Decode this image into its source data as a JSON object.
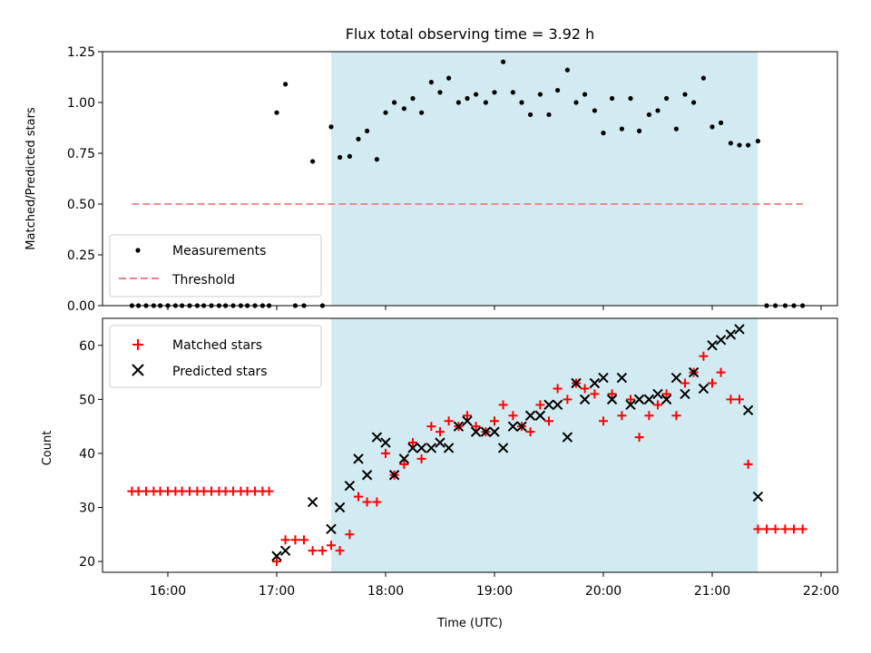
{
  "chart_data": [
    {
      "type": "scatter",
      "title": "Flux total observing time = 3.92 h",
      "xlabel": "",
      "ylabel": "Matched/Predicted stars",
      "ylim": [
        0,
        1.25
      ],
      "yticks": [
        "0.00",
        "0.25",
        "0.50",
        "0.75",
        "1.00",
        "1.25"
      ],
      "xlim_hours": [
        15.4,
        22.15
      ],
      "shaded_span_hours": [
        17.5,
        21.42
      ],
      "shade_color": "#add8e6",
      "legend_position": "lower-left",
      "series": [
        {
          "name": "Measurements",
          "marker": "dot",
          "color": "#000000",
          "points": [
            [
              15.67,
              0
            ],
            [
              15.73,
              0
            ],
            [
              15.8,
              0
            ],
            [
              15.87,
              0
            ],
            [
              15.93,
              0
            ],
            [
              16.0,
              0
            ],
            [
              16.07,
              0
            ],
            [
              16.13,
              0
            ],
            [
              16.2,
              0
            ],
            [
              16.27,
              0
            ],
            [
              16.33,
              0
            ],
            [
              16.4,
              0
            ],
            [
              16.47,
              0
            ],
            [
              16.53,
              0
            ],
            [
              16.6,
              0
            ],
            [
              16.67,
              0
            ],
            [
              16.73,
              0
            ],
            [
              16.8,
              0
            ],
            [
              16.87,
              0
            ],
            [
              16.93,
              0
            ],
            [
              17.0,
              0.95
            ],
            [
              17.08,
              1.09
            ],
            [
              17.17,
              0
            ],
            [
              17.25,
              0
            ],
            [
              17.33,
              0.71
            ],
            [
              17.42,
              0
            ],
            [
              17.5,
              0.88
            ],
            [
              17.58,
              0.73
            ],
            [
              17.67,
              0.735
            ],
            [
              17.75,
              0.82
            ],
            [
              17.83,
              0.86
            ],
            [
              17.92,
              0.72
            ],
            [
              18.0,
              0.95
            ],
            [
              18.08,
              1.0
            ],
            [
              18.17,
              0.97
            ],
            [
              18.25,
              1.02
            ],
            [
              18.33,
              0.95
            ],
            [
              18.42,
              1.1
            ],
            [
              18.5,
              1.05
            ],
            [
              18.58,
              1.12
            ],
            [
              18.67,
              1.0
            ],
            [
              18.75,
              1.02
            ],
            [
              18.83,
              1.04
            ],
            [
              18.92,
              1.0
            ],
            [
              19.0,
              1.05
            ],
            [
              19.08,
              1.2
            ],
            [
              19.17,
              1.05
            ],
            [
              19.25,
              1.0
            ],
            [
              19.33,
              0.94
            ],
            [
              19.42,
              1.04
            ],
            [
              19.5,
              0.94
            ],
            [
              19.58,
              1.06
            ],
            [
              19.67,
              1.16
            ],
            [
              19.75,
              1.0
            ],
            [
              19.83,
              1.04
            ],
            [
              19.92,
              0.96
            ],
            [
              20.0,
              0.85
            ],
            [
              20.08,
              1.02
            ],
            [
              20.17,
              0.87
            ],
            [
              20.25,
              1.02
            ],
            [
              20.33,
              0.86
            ],
            [
              20.42,
              0.94
            ],
            [
              20.5,
              0.96
            ],
            [
              20.58,
              1.02
            ],
            [
              20.67,
              0.87
            ],
            [
              20.75,
              1.04
            ],
            [
              20.83,
              1.0
            ],
            [
              20.92,
              1.12
            ],
            [
              21.0,
              0.88
            ],
            [
              21.08,
              0.9
            ],
            [
              21.17,
              0.8
            ],
            [
              21.25,
              0.79
            ],
            [
              21.33,
              0.79
            ],
            [
              21.42,
              0.81
            ],
            [
              21.5,
              0
            ],
            [
              21.58,
              0
            ],
            [
              21.67,
              0
            ],
            [
              21.75,
              0
            ],
            [
              21.83,
              0
            ]
          ]
        },
        {
          "name": "Threshold",
          "marker": "dashed-line",
          "color": "#f08080",
          "points": [
            [
              15.67,
              0.5
            ],
            [
              21.83,
              0.5
            ]
          ]
        }
      ]
    },
    {
      "type": "scatter",
      "title": "",
      "xlabel": "Time (UTC)",
      "ylabel": "Count",
      "ylim": [
        18,
        65
      ],
      "yticks": [
        "20",
        "30",
        "40",
        "50",
        "60"
      ],
      "xticks": [
        "16:00",
        "17:00",
        "18:00",
        "19:00",
        "20:00",
        "21:00",
        "22:00"
      ],
      "xlim_hours": [
        15.4,
        22.15
      ],
      "shaded_span_hours": [
        17.5,
        21.42
      ],
      "shade_color": "#add8e6",
      "legend_position": "top-left",
      "series": [
        {
          "name": "Matched stars",
          "marker": "plus",
          "color": "#ff0000",
          "points": [
            [
              15.67,
              33
            ],
            [
              15.73,
              33
            ],
            [
              15.8,
              33
            ],
            [
              15.87,
              33
            ],
            [
              15.93,
              33
            ],
            [
              16.0,
              33
            ],
            [
              16.07,
              33
            ],
            [
              16.13,
              33
            ],
            [
              16.2,
              33
            ],
            [
              16.27,
              33
            ],
            [
              16.33,
              33
            ],
            [
              16.4,
              33
            ],
            [
              16.47,
              33
            ],
            [
              16.53,
              33
            ],
            [
              16.6,
              33
            ],
            [
              16.67,
              33
            ],
            [
              16.73,
              33
            ],
            [
              16.8,
              33
            ],
            [
              16.87,
              33
            ],
            [
              16.93,
              33
            ],
            [
              17.0,
              20
            ],
            [
              17.08,
              24
            ],
            [
              17.17,
              24
            ],
            [
              17.25,
              24
            ],
            [
              17.33,
              22
            ],
            [
              17.42,
              22
            ],
            [
              17.5,
              23
            ],
            [
              17.58,
              22
            ],
            [
              17.67,
              25
            ],
            [
              17.75,
              32
            ],
            [
              17.83,
              31
            ],
            [
              17.92,
              31
            ],
            [
              18.0,
              40
            ],
            [
              18.08,
              36
            ],
            [
              18.17,
              38
            ],
            [
              18.25,
              42
            ],
            [
              18.33,
              39
            ],
            [
              18.42,
              45
            ],
            [
              18.5,
              44
            ],
            [
              18.58,
              46
            ],
            [
              18.67,
              45
            ],
            [
              18.75,
              47
            ],
            [
              18.83,
              45
            ],
            [
              18.92,
              44
            ],
            [
              19.0,
              46
            ],
            [
              19.08,
              49
            ],
            [
              19.17,
              47
            ],
            [
              19.25,
              45
            ],
            [
              19.33,
              44
            ],
            [
              19.42,
              49
            ],
            [
              19.5,
              46
            ],
            [
              19.58,
              52
            ],
            [
              19.67,
              50
            ],
            [
              19.75,
              53
            ],
            [
              19.83,
              52
            ],
            [
              19.92,
              51
            ],
            [
              20.0,
              46
            ],
            [
              20.08,
              51
            ],
            [
              20.17,
              47
            ],
            [
              20.25,
              50
            ],
            [
              20.33,
              43
            ],
            [
              20.42,
              47
            ],
            [
              20.5,
              49
            ],
            [
              20.58,
              51
            ],
            [
              20.67,
              47
            ],
            [
              20.75,
              53
            ],
            [
              20.83,
              55
            ],
            [
              20.92,
              58
            ],
            [
              21.0,
              53
            ],
            [
              21.08,
              55
            ],
            [
              21.17,
              50
            ],
            [
              21.25,
              50
            ],
            [
              21.33,
              38
            ],
            [
              21.42,
              26
            ],
            [
              21.5,
              26
            ],
            [
              21.58,
              26
            ],
            [
              21.67,
              26
            ],
            [
              21.75,
              26
            ],
            [
              21.83,
              26
            ]
          ]
        },
        {
          "name": "Predicted stars",
          "marker": "x",
          "color": "#000000",
          "points": [
            [
              17.0,
              21
            ],
            [
              17.08,
              22
            ],
            [
              17.33,
              31
            ],
            [
              17.5,
              26
            ],
            [
              17.58,
              30
            ],
            [
              17.67,
              34
            ],
            [
              17.75,
              39
            ],
            [
              17.83,
              36
            ],
            [
              17.92,
              43
            ],
            [
              18.0,
              42
            ],
            [
              18.08,
              36
            ],
            [
              18.17,
              39
            ],
            [
              18.25,
              41
            ],
            [
              18.33,
              41
            ],
            [
              18.42,
              41
            ],
            [
              18.5,
              42
            ],
            [
              18.58,
              41
            ],
            [
              18.67,
              45
            ],
            [
              18.75,
              46
            ],
            [
              18.83,
              44
            ],
            [
              18.92,
              44
            ],
            [
              19.0,
              44
            ],
            [
              19.08,
              41
            ],
            [
              19.17,
              45
            ],
            [
              19.25,
              45
            ],
            [
              19.33,
              47
            ],
            [
              19.42,
              47
            ],
            [
              19.5,
              49
            ],
            [
              19.58,
              49
            ],
            [
              19.67,
              43
            ],
            [
              19.75,
              53
            ],
            [
              19.83,
              50
            ],
            [
              19.92,
              53
            ],
            [
              20.0,
              54
            ],
            [
              20.08,
              50
            ],
            [
              20.17,
              54
            ],
            [
              20.25,
              49
            ],
            [
              20.33,
              50
            ],
            [
              20.42,
              50
            ],
            [
              20.5,
              51
            ],
            [
              20.58,
              50
            ],
            [
              20.67,
              54
            ],
            [
              20.75,
              51
            ],
            [
              20.83,
              55
            ],
            [
              20.92,
              52
            ],
            [
              21.0,
              60
            ],
            [
              21.08,
              61
            ],
            [
              21.17,
              62
            ],
            [
              21.25,
              63
            ],
            [
              21.33,
              48
            ],
            [
              21.42,
              32
            ]
          ]
        }
      ]
    }
  ]
}
